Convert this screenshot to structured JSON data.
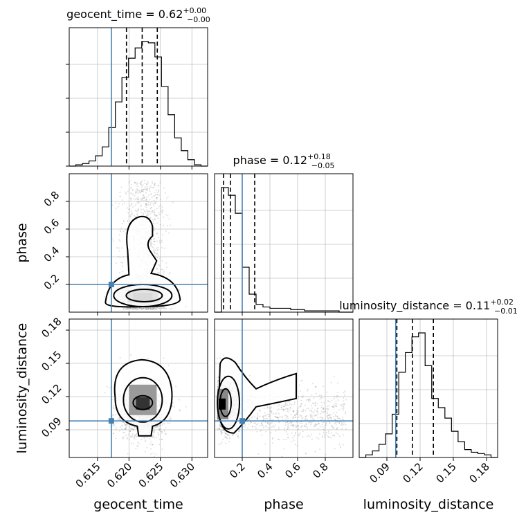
{
  "chart_data": {
    "type": "corner",
    "parameters": [
      "geocent_time",
      "phase",
      "luminosity_distance"
    ],
    "axis_labels": [
      "geocent_time",
      "phase",
      "luminosity_distance"
    ],
    "truths": [
      0.6172,
      0.2,
      0.098
    ],
    "titles": [
      {
        "param": "geocent_time",
        "median": "0.62",
        "plus": "+0.00",
        "minus": "−0.00",
        "prefix": "geocent_time = 0.62"
      },
      {
        "param": "phase",
        "median": "0.12",
        "plus": "+0.18",
        "minus": "−0.05",
        "prefix": "phase = 0.12"
      },
      {
        "param": "luminosity_distance",
        "median": "0.11",
        "plus": "+0.02",
        "minus": "−0.01",
        "prefix": "luminosity_distance = 0.11"
      }
    ],
    "ranges": [
      [
        0.6105,
        0.6325
      ],
      [
        0.0,
        1.0
      ],
      [
        0.065,
        0.19
      ]
    ],
    "ticks": [
      {
        "values": [
          0.615,
          0.62,
          0.625,
          0.63
        ],
        "labels": [
          "0.615",
          "0.620",
          "0.625",
          "0.630"
        ]
      },
      {
        "values": [
          0.2,
          0.4,
          0.6,
          0.8
        ],
        "labels": [
          "0.2",
          "0.4",
          "0.6",
          "0.8"
        ]
      },
      {
        "values": [
          0.09,
          0.12,
          0.15,
          0.18
        ],
        "labels": [
          "0.09",
          "0.12",
          "0.15",
          "0.18"
        ]
      }
    ],
    "quantiles": [
      [
        0.6196,
        0.6221,
        0.6245
      ],
      [
        0.065,
        0.115,
        0.29
      ],
      [
        0.099,
        0.113,
        0.132
      ]
    ],
    "histograms": [
      {
        "param": "geocent_time",
        "counts": [
          0,
          1,
          2,
          4,
          8,
          15,
          30,
          50,
          69,
          84,
          92,
          97,
          96,
          85,
          62,
          40,
          22,
          12,
          5,
          1,
          0
        ]
      },
      {
        "param": "phase",
        "counts": [
          0,
          97,
          91,
          77,
          35,
          14,
          6,
          4,
          3,
          3,
          3,
          2,
          2,
          1,
          1,
          1,
          1,
          1,
          0,
          0
        ]
      },
      {
        "param": "luminosity_distance",
        "counts": [
          0,
          2,
          5,
          10,
          18,
          33,
          65,
          80,
          92,
          95,
          70,
          45,
          38,
          30,
          20,
          12,
          6,
          4,
          3,
          2,
          0
        ]
      }
    ],
    "panels": [
      {
        "x": "geocent_time",
        "y": "phase"
      },
      {
        "x": "geocent_time",
        "y": "luminosity_distance"
      },
      {
        "x": "phase",
        "y": "luminosity_distance"
      }
    ],
    "grid": true,
    "colors": {
      "truth": "#4682b4",
      "hist": "#000000",
      "points": "#808080",
      "grid": "#c0c0c0"
    }
  }
}
